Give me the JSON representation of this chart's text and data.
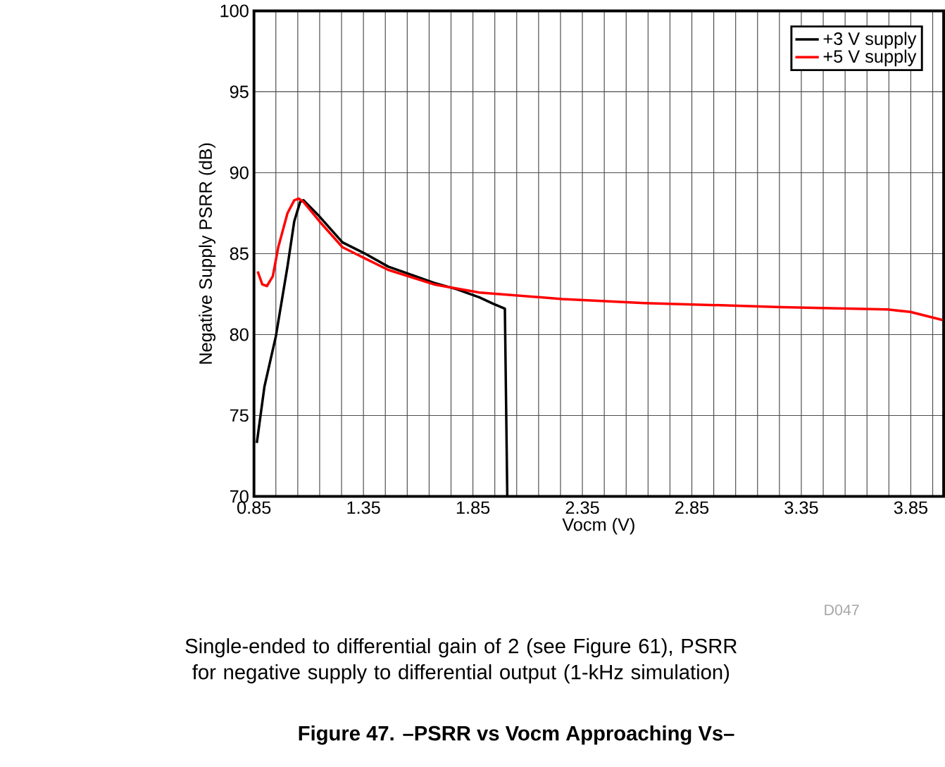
{
  "chart_data": {
    "type": "line",
    "title": "Figure 47. –PSRR vs Vocm Approaching Vs–",
    "xlabel": "Vocm (V)",
    "ylabel": "Negative Supply PSRR (dB)",
    "annotations": [
      "D047",
      "Single-ended to differential gain of 2 (see Figure 61), PSRR for negative supply to differential output (1-kHz simulation)"
    ],
    "xlim": [
      0.85,
      4.0
    ],
    "ylim": [
      70,
      100
    ],
    "xticks": [
      0.85,
      {
        "value": 0.95,
        "label": null
      },
      {
        "value": 1.05,
        "label": null
      },
      {
        "value": 1.15,
        "label": null
      },
      {
        "value": 1.25,
        "label": null
      },
      1.35,
      {
        "value": 1.45,
        "label": null
      },
      {
        "value": 1.55,
        "label": null
      },
      {
        "value": 1.65,
        "label": null
      },
      {
        "value": 1.75,
        "label": null
      },
      1.85,
      {
        "value": 1.95,
        "label": null
      },
      {
        "value": 2.05,
        "label": null
      },
      {
        "value": 2.15,
        "label": null
      },
      {
        "value": 2.25,
        "label": null
      },
      2.35,
      {
        "value": 2.45,
        "label": null
      },
      {
        "value": 2.55,
        "label": null
      },
      {
        "value": 2.65,
        "label": null
      },
      {
        "value": 2.75,
        "label": null
      },
      2.85,
      {
        "value": 2.95,
        "label": null
      },
      {
        "value": 3.05,
        "label": null
      },
      {
        "value": 3.15,
        "label": null
      },
      {
        "value": 3.25,
        "label": null
      },
      3.35,
      {
        "value": 3.45,
        "label": null
      },
      {
        "value": 3.55,
        "label": null
      },
      {
        "value": 3.65,
        "label": null
      },
      {
        "value": 3.75,
        "label": null
      },
      3.85,
      {
        "value": 3.95,
        "label": null
      }
    ],
    "yticks": [
      70,
      75,
      80,
      85,
      90,
      95,
      100
    ],
    "grid": true,
    "legend": "top right",
    "marker": "none",
    "line_style": "solid",
    "series": [
      {
        "name": "+3 V supply",
        "color": "#000000",
        "x": [
          0.863,
          0.898,
          0.95,
          1.003,
          1.034,
          1.061,
          1.076,
          1.149,
          1.254,
          1.358,
          1.463,
          1.568,
          1.672,
          1.777,
          1.88,
          1.944,
          1.996,
          2.007
        ],
        "values": [
          73.3,
          76.8,
          79.9,
          84.2,
          87.0,
          88.2,
          88.3,
          87.3,
          85.7,
          85.0,
          84.2,
          83.7,
          83.2,
          82.8,
          82.3,
          81.9,
          81.6,
          70
        ]
      },
      {
        "name": "+5 V supply",
        "color": "#ff0000",
        "x": [
          0.867,
          0.888,
          0.909,
          0.936,
          0.961,
          1.003,
          1.034,
          1.055,
          1.076,
          1.149,
          1.254,
          1.358,
          1.463,
          1.672,
          1.88,
          2.258,
          2.634,
          3.26,
          3.743,
          3.848,
          3.995
        ],
        "values": [
          83.9,
          83.1,
          83.0,
          83.6,
          85.4,
          87.5,
          88.3,
          88.4,
          88.2,
          87.0,
          85.4,
          84.7,
          84.0,
          83.1,
          82.6,
          82.2,
          81.95,
          81.7,
          81.55,
          81.4,
          80.9
        ]
      }
    ]
  }
}
